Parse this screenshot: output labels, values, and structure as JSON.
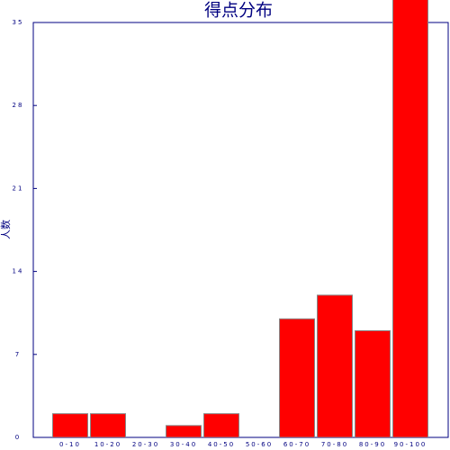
{
  "chart_data": {
    "type": "bar",
    "title": "得点分布",
    "y_label": "人数",
    "categories": [
      "0-10",
      "10-20",
      "20-30",
      "30-40",
      "40-50",
      "50-60",
      "60-70",
      "70-80",
      "80-90",
      "90-100"
    ],
    "values": [
      2,
      2,
      0,
      1,
      2,
      0,
      10,
      12,
      9,
      37
    ],
    "color": "#ff0000",
    "ylim": [
      0,
      35
    ],
    "yticks": [
      0,
      7,
      14,
      21,
      28,
      35
    ],
    "grid": false
  }
}
